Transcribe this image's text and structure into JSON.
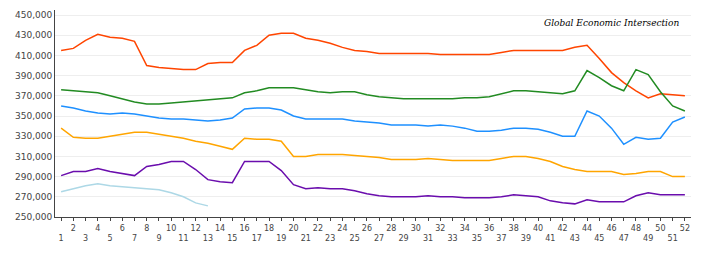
{
  "chart_data": {
    "type": "line",
    "xlim": [
      0.5,
      52.5
    ],
    "xticks": [
      1,
      2,
      3,
      4,
      5,
      6,
      7,
      8,
      9,
      10,
      11,
      12,
      13,
      14,
      15,
      16,
      17,
      18,
      19,
      20,
      21,
      22,
      23,
      24,
      25,
      26,
      27,
      28,
      29,
      30,
      31,
      32,
      33,
      34,
      35,
      36,
      37,
      38,
      39,
      40,
      41,
      42,
      43,
      44,
      45,
      46,
      47,
      48,
      49,
      50,
      51,
      52
    ],
    "ylim": [
      250000,
      455000
    ],
    "yticks": [
      {
        "value": 250000,
        "label": "250,000"
      },
      {
        "value": 270000,
        "label": "270,000"
      },
      {
        "value": 290000,
        "label": "290,000"
      },
      {
        "value": 310000,
        "label": "310,000"
      },
      {
        "value": 330000,
        "label": "330,000"
      },
      {
        "value": 350000,
        "label": "350,000"
      },
      {
        "value": 370000,
        "label": "370,000"
      },
      {
        "value": 390000,
        "label": "390,000"
      },
      {
        "value": 410000,
        "label": "410,000"
      },
      {
        "value": 430000,
        "label": "430,000"
      },
      {
        "value": 450000,
        "label": "450,000"
      }
    ],
    "grid": true,
    "annotations": [
      "Global Economic Intersection"
    ],
    "series": [
      {
        "color": "#FF4500",
        "x": [
          1,
          2,
          3,
          4,
          5,
          6,
          7,
          8,
          9,
          10,
          11,
          12,
          13,
          14,
          15,
          16,
          17,
          18,
          19,
          20,
          21,
          22,
          23,
          24,
          25,
          26,
          27,
          28,
          29,
          30,
          31,
          32,
          33,
          34,
          35,
          36,
          37,
          38,
          39,
          40,
          41,
          42,
          43,
          44,
          45,
          46,
          47,
          48,
          49,
          50,
          51,
          52
        ],
        "values": [
          415000,
          417000,
          425000,
          431000,
          428000,
          427000,
          424000,
          400000,
          398000,
          397000,
          396000,
          396000,
          402000,
          403000,
          403000,
          415000,
          420000,
          430000,
          432000,
          432000,
          427000,
          425000,
          422000,
          418000,
          415000,
          414000,
          412000,
          412000,
          412000,
          412000,
          412000,
          411000,
          411000,
          411000,
          411000,
          411000,
          413000,
          415000,
          415000,
          415000,
          415000,
          415000,
          418000,
          420000,
          407000,
          393000,
          383000,
          375000,
          368000,
          372000,
          371000,
          370000
        ]
      },
      {
        "color": "#228B22",
        "x": [
          1,
          2,
          3,
          4,
          5,
          6,
          7,
          8,
          9,
          10,
          11,
          12,
          13,
          14,
          15,
          16,
          17,
          18,
          19,
          20,
          21,
          22,
          23,
          24,
          25,
          26,
          27,
          28,
          29,
          30,
          31,
          32,
          33,
          34,
          35,
          36,
          37,
          38,
          39,
          40,
          41,
          42,
          43,
          44,
          45,
          46,
          47,
          48,
          49,
          50,
          51,
          52
        ],
        "values": [
          376000,
          375000,
          374000,
          373000,
          370000,
          367000,
          364000,
          362000,
          362000,
          363000,
          364000,
          365000,
          366000,
          367000,
          368000,
          373000,
          375000,
          378000,
          378000,
          378000,
          376000,
          374000,
          373000,
          374000,
          374000,
          371000,
          369000,
          368000,
          367000,
          367000,
          367000,
          367000,
          367000,
          368000,
          368000,
          369000,
          372000,
          375000,
          375000,
          374000,
          373000,
          372000,
          375000,
          395000,
          388000,
          380000,
          375000,
          396000,
          391000,
          374000,
          360000,
          355000
        ]
      },
      {
        "color": "#1E90FF",
        "x": [
          1,
          2,
          3,
          4,
          5,
          6,
          7,
          8,
          9,
          10,
          11,
          12,
          13,
          14,
          15,
          16,
          17,
          18,
          19,
          20,
          21,
          22,
          23,
          24,
          25,
          26,
          27,
          28,
          29,
          30,
          31,
          32,
          33,
          34,
          35,
          36,
          37,
          38,
          39,
          40,
          41,
          42,
          43,
          44,
          45,
          46,
          47,
          48,
          49,
          50,
          51,
          52
        ],
        "values": [
          360000,
          358000,
          355000,
          353000,
          352000,
          353000,
          352000,
          350000,
          348000,
          347000,
          347000,
          346000,
          345000,
          346000,
          348000,
          357000,
          358000,
          358000,
          356000,
          350000,
          347000,
          347000,
          347000,
          347000,
          345000,
          344000,
          343000,
          341000,
          341000,
          341000,
          340000,
          341000,
          340000,
          338000,
          335000,
          335000,
          336000,
          338000,
          338000,
          337000,
          334000,
          330000,
          330000,
          355000,
          350000,
          338000,
          322000,
          329000,
          327000,
          328000,
          344000,
          349000
        ]
      },
      {
        "color": "#FFA500",
        "x": [
          1,
          2,
          3,
          4,
          5,
          6,
          7,
          8,
          9,
          10,
          11,
          12,
          13,
          14,
          15,
          16,
          17,
          18,
          19,
          20,
          21,
          22,
          23,
          24,
          25,
          26,
          27,
          28,
          29,
          30,
          31,
          32,
          33,
          34,
          35,
          36,
          37,
          38,
          39,
          40,
          41,
          42,
          43,
          44,
          45,
          46,
          47,
          48,
          49,
          50,
          51,
          52
        ],
        "values": [
          338000,
          329000,
          328000,
          328000,
          330000,
          332000,
          334000,
          334000,
          332000,
          330000,
          328000,
          325000,
          323000,
          320000,
          317000,
          328000,
          327000,
          327000,
          325000,
          310000,
          310000,
          312000,
          312000,
          312000,
          311000,
          310000,
          309000,
          307000,
          307000,
          307000,
          308000,
          307000,
          306000,
          306000,
          306000,
          306000,
          308000,
          310000,
          310000,
          308000,
          305000,
          300000,
          297000,
          295000,
          295000,
          295000,
          292000,
          293000,
          295000,
          295000,
          290000,
          290000
        ]
      },
      {
        "color": "#6A0DAD",
        "x": [
          1,
          2,
          3,
          4,
          5,
          6,
          7,
          8,
          9,
          10,
          11,
          12,
          13,
          14,
          15,
          16,
          17,
          18,
          19,
          20,
          21,
          22,
          23,
          24,
          25,
          26,
          27,
          28,
          29,
          30,
          31,
          32,
          33,
          34,
          35,
          36,
          37,
          38,
          39,
          40,
          41,
          42,
          43,
          44,
          45,
          46,
          47,
          48,
          49,
          50,
          51,
          52
        ],
        "values": [
          291000,
          295000,
          295000,
          298000,
          295000,
          293000,
          291000,
          300000,
          302000,
          305000,
          305000,
          297000,
          287000,
          285000,
          284000,
          305000,
          305000,
          305000,
          296000,
          282000,
          278000,
          279000,
          278000,
          278000,
          276000,
          273000,
          271000,
          270000,
          270000,
          270000,
          271000,
          270000,
          270000,
          269000,
          269000,
          269000,
          270000,
          272000,
          271000,
          270000,
          266000,
          264000,
          263000,
          267000,
          265000,
          265000,
          265000,
          271000,
          274000,
          272000,
          272000,
          272000
        ]
      },
      {
        "color": "#ADD8E6",
        "x": [
          1,
          2,
          3,
          4,
          5,
          6,
          7,
          8,
          9,
          10,
          11,
          12,
          13
        ],
        "values": [
          275000,
          278000,
          281000,
          283000,
          281000,
          280000,
          279000,
          278000,
          277000,
          274000,
          270000,
          264000,
          261000
        ]
      }
    ]
  }
}
